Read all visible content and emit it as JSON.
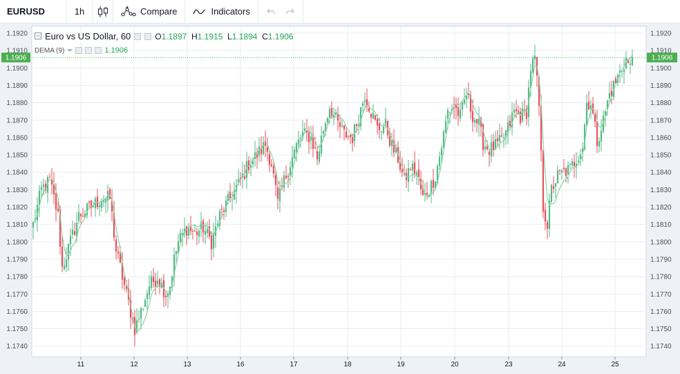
{
  "toolbar": {
    "symbol": "EURUSD",
    "interval": "1h",
    "compare_label": "Compare",
    "indicators_label": "Indicators",
    "icons": [
      "candlestick-icon",
      "compare-icon",
      "indicators-icon",
      "undo-icon",
      "redo-icon"
    ]
  },
  "legend": {
    "title": "Euro vs US Dollar, 60",
    "o_label": "O",
    "o_value": "1.1897",
    "h_label": "H",
    "h_value": "1.1915",
    "l_label": "L",
    "l_value": "1.1894",
    "c_label": "C",
    "c_value": "1.1906",
    "indicator_name": "DEMA (9)",
    "indicator_value": "1.1906"
  },
  "colors": {
    "up": "#53b987",
    "down": "#eb4d5c",
    "dema": "#8bd3a4",
    "price_tag": "#4caf50",
    "grid": "#e9edf2"
  },
  "chart_data": {
    "type": "candlestick",
    "ylim": [
      1.1735,
      1.1925
    ],
    "y_ticks": [
      "1.1740",
      "1.1750",
      "1.1760",
      "1.1770",
      "1.1780",
      "1.1790",
      "1.1800",
      "1.1810",
      "1.1820",
      "1.1830",
      "1.1840",
      "1.1850",
      "1.1860",
      "1.1870",
      "1.1880",
      "1.1890",
      "1.1900",
      "1.1910",
      "1.1920"
    ],
    "x_ticks": [
      "11",
      "12",
      "13",
      "16",
      "17",
      "18",
      "19",
      "20",
      "23",
      "24",
      "25"
    ],
    "last_price": "1.1906",
    "grid": true,
    "anchors": [
      [
        0,
        1.181
      ],
      [
        4,
        1.183
      ],
      [
        8,
        1.1835
      ],
      [
        12,
        1.1815
      ],
      [
        14,
        1.1785
      ],
      [
        18,
        1.18
      ],
      [
        22,
        1.1815
      ],
      [
        28,
        1.182
      ],
      [
        33,
        1.1825
      ],
      [
        37,
        1.1825
      ],
      [
        40,
        1.1795
      ],
      [
        43,
        1.178
      ],
      [
        47,
        1.176
      ],
      [
        49,
        1.175
      ],
      [
        52,
        1.176
      ],
      [
        56,
        1.1775
      ],
      [
        60,
        1.178
      ],
      [
        64,
        1.177
      ],
      [
        66,
        1.1775
      ],
      [
        68,
        1.179
      ],
      [
        70,
        1.18
      ],
      [
        74,
        1.1808
      ],
      [
        78,
        1.1805
      ],
      [
        82,
        1.1808
      ],
      [
        86,
        1.18
      ],
      [
        90,
        1.1815
      ],
      [
        95,
        1.1825
      ],
      [
        100,
        1.1835
      ],
      [
        104,
        1.1845
      ],
      [
        108,
        1.185
      ],
      [
        112,
        1.1856
      ],
      [
        115,
        1.1845
      ],
      [
        118,
        1.1822
      ],
      [
        121,
        1.1835
      ],
      [
        124,
        1.1845
      ],
      [
        127,
        1.1855
      ],
      [
        130,
        1.1862
      ],
      [
        134,
        1.186
      ],
      [
        137,
        1.1848
      ],
      [
        140,
        1.1865
      ],
      [
        143,
        1.1878
      ],
      [
        146,
        1.187
      ],
      [
        150,
        1.1862
      ],
      [
        154,
        1.186
      ],
      [
        157,
        1.1872
      ],
      [
        160,
        1.1885
      ],
      [
        163,
        1.1875
      ],
      [
        166,
        1.1865
      ],
      [
        170,
        1.1867
      ],
      [
        173,
        1.1855
      ],
      [
        176,
        1.1848
      ],
      [
        179,
        1.1835
      ],
      [
        182,
        1.1843
      ],
      [
        185,
        1.184
      ],
      [
        188,
        1.1825
      ],
      [
        191,
        1.183
      ],
      [
        194,
        1.1838
      ],
      [
        197,
        1.1855
      ],
      [
        200,
        1.1875
      ],
      [
        203,
        1.1878
      ],
      [
        206,
        1.1872
      ],
      [
        209,
        1.1885
      ],
      [
        212,
        1.1873
      ],
      [
        215,
        1.1867
      ],
      [
        217,
        1.1857
      ],
      [
        220,
        1.1853
      ],
      [
        223,
        1.1855
      ],
      [
        226,
        1.1858
      ],
      [
        229,
        1.1865
      ],
      [
        232,
        1.1875
      ],
      [
        235,
        1.1872
      ],
      [
        238,
        1.1875
      ],
      [
        240,
        1.19
      ],
      [
        242,
        1.1905
      ],
      [
        244,
        1.1878
      ],
      [
        246,
        1.182
      ],
      [
        248,
        1.181
      ],
      [
        250,
        1.183
      ],
      [
        253,
        1.1838
      ],
      [
        256,
        1.184
      ],
      [
        259,
        1.1842
      ],
      [
        262,
        1.1848
      ],
      [
        265,
        1.1855
      ],
      [
        267,
        1.188
      ],
      [
        269,
        1.188
      ],
      [
        272,
        1.1858
      ],
      [
        275,
        1.187
      ],
      [
        278,
        1.1885
      ],
      [
        281,
        1.1892
      ],
      [
        284,
        1.19
      ],
      [
        286,
        1.1905
      ],
      [
        288,
        1.19
      ],
      [
        289,
        1.1906
      ]
    ]
  }
}
